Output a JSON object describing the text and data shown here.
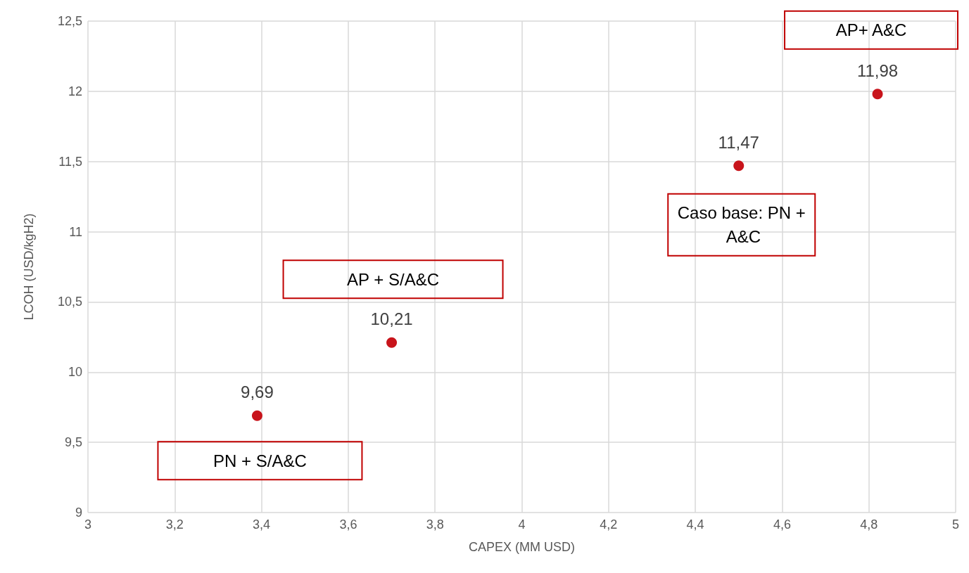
{
  "chart_data": {
    "type": "scatter",
    "xlabel": "CAPEX (MM USD)",
    "ylabel": "LCOH (USD/kgH2)",
    "x": [
      3.39,
      3.7,
      4.5,
      4.82
    ],
    "values": [
      9.69,
      10.21,
      11.47,
      11.98
    ],
    "value_labels": [
      "9,69",
      "10,21",
      "11,47",
      "11,98"
    ],
    "color": "#c8141b",
    "marker": "circle",
    "grid": true,
    "xlim": [
      3,
      5
    ],
    "xticks": [
      3,
      {
        "value": 3.2,
        "label": "3,2"
      },
      {
        "value": 3.4,
        "label": "3,4"
      },
      {
        "value": 3.6,
        "label": "3,6"
      },
      {
        "value": 3.8,
        "label": "3,8"
      },
      4,
      {
        "value": 4.2,
        "label": "4,2"
      },
      {
        "value": 4.4,
        "label": "4,4"
      },
      {
        "value": 4.6,
        "label": "4,6"
      },
      {
        "value": 4.8,
        "label": "4,8"
      },
      5
    ],
    "ylim": [
      9,
      12.5
    ],
    "yticks": [
      9,
      {
        "value": 9.5,
        "label": "9,5"
      },
      10,
      {
        "value": 10.5,
        "label": "10,5"
      },
      11,
      {
        "value": 11.5,
        "label": "11,5"
      },
      12,
      {
        "value": 12.5,
        "label": "12,5"
      }
    ],
    "annotations": [
      "PN + S/A&C",
      "AP + S/A&C",
      "Caso base: PN + A&C",
      "AP+ A&C"
    ]
  }
}
